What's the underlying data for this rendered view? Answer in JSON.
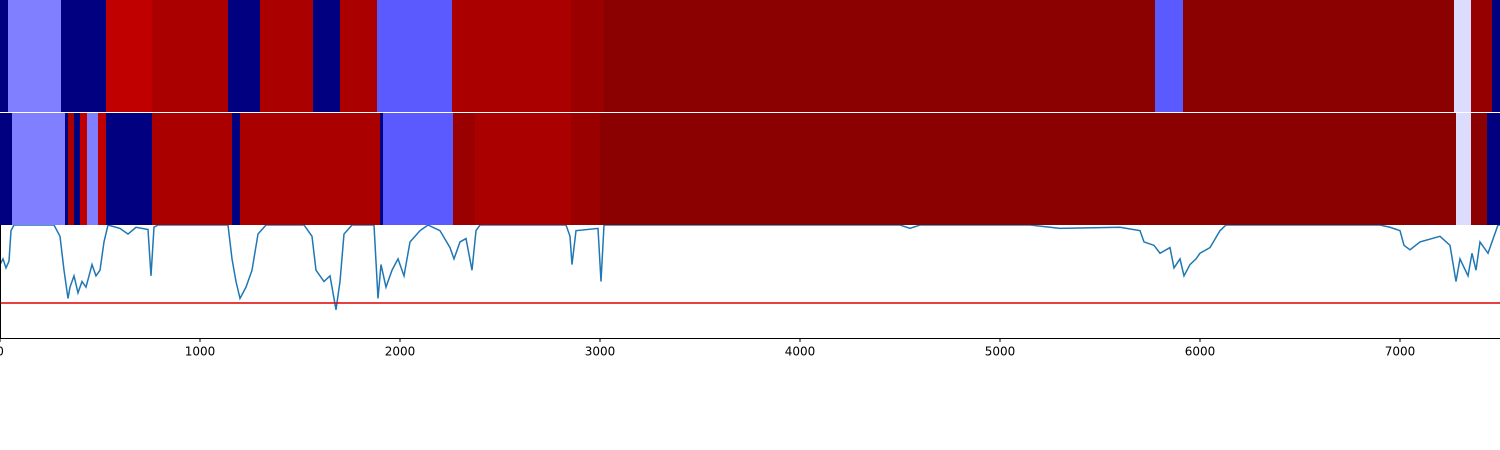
{
  "chart_data": [
    {
      "type": "segments",
      "xlim": [
        0,
        7500
      ],
      "bins": [
        0,
        40,
        305,
        530,
        760,
        1140,
        1300,
        1565,
        1700,
        1885,
        2260,
        2855,
        3020,
        5775,
        5915,
        7270,
        7355,
        7460,
        7500
      ],
      "colors": [
        "#000080",
        "#7f7fff",
        "#000080",
        "#c00000",
        "#aa0000",
        "#000080",
        "#aa0000",
        "#000080",
        "#aa0000",
        "#5a5aff",
        "#aa0000",
        "#9a0000",
        "#8b0000",
        "#5a5aff",
        "#8b0000",
        "#dcdcff",
        "#960000",
        "#000080"
      ]
    },
    {
      "type": "segments",
      "xlim": [
        0,
        7500
      ],
      "bins": [
        0,
        60,
        325,
        340,
        370,
        400,
        435,
        490,
        530,
        760,
        1160,
        1200,
        1900,
        1915,
        2265,
        2375,
        2855,
        3000,
        7280,
        7355,
        7435,
        7500
      ],
      "colors": [
        "#000080",
        "#7f7fff",
        "#000080",
        "#aa0000",
        "#000080",
        "#c00000",
        "#7f7fff",
        "#c00000",
        "#000080",
        "#aa0000",
        "#000080",
        "#aa0000",
        "#000080",
        "#5a5aff",
        "#9a0000",
        "#aa0000",
        "#9a0000",
        "#8b0000",
        "#dcdcff",
        "#8b0000",
        "#000080"
      ]
    },
    {
      "type": "line",
      "xlim": [
        0,
        7500
      ],
      "ylim": [
        0,
        1
      ],
      "xticks": [
        0,
        1000,
        2000,
        3000,
        4000,
        5000,
        6000,
        7000
      ],
      "color": "#1f77b4",
      "threshold": 0.31,
      "threshold_color": "#e00000",
      "x": [
        0,
        15,
        30,
        45,
        55,
        70,
        270,
        300,
        320,
        340,
        350,
        370,
        390,
        410,
        430,
        460,
        480,
        500,
        520,
        540,
        600,
        640,
        680,
        740,
        755,
        770,
        790,
        1140,
        1160,
        1180,
        1200,
        1230,
        1260,
        1290,
        1330,
        1520,
        1560,
        1580,
        1620,
        1650,
        1680,
        1700,
        1720,
        1760,
        1870,
        1890,
        1905,
        1930,
        1960,
        1990,
        2020,
        2050,
        2100,
        2140,
        2200,
        2250,
        2270,
        2300,
        2330,
        2360,
        2380,
        2400,
        2830,
        2850,
        2860,
        2880,
        2990,
        3005,
        3020,
        4500,
        4550,
        4600,
        5150,
        5300,
        5600,
        5700,
        5720,
        5770,
        5800,
        5850,
        5870,
        5900,
        5920,
        5950,
        5980,
        6000,
        6050,
        6100,
        6130,
        6900,
        6950,
        7000,
        7020,
        7050,
        7100,
        7200,
        7250,
        7280,
        7300,
        7340,
        7360,
        7380,
        7400,
        7440,
        7470,
        7490,
        7500
      ],
      "values": [
        0.65,
        0.7,
        0.62,
        0.68,
        0.95,
        1,
        1,
        0.9,
        0.6,
        0.35,
        0.45,
        0.55,
        0.4,
        0.5,
        0.45,
        0.65,
        0.55,
        0.6,
        0.85,
        1,
        0.97,
        0.92,
        0.98,
        0.96,
        0.55,
        0.98,
        1,
        1,
        0.7,
        0.5,
        0.35,
        0.45,
        0.6,
        0.92,
        1,
        1,
        0.9,
        0.6,
        0.5,
        0.55,
        0.25,
        0.5,
        0.92,
        1,
        1,
        0.35,
        0.65,
        0.45,
        0.6,
        0.7,
        0.55,
        0.85,
        0.95,
        1,
        0.95,
        0.8,
        0.7,
        0.85,
        0.88,
        0.6,
        0.95,
        1,
        1,
        0.9,
        0.65,
        0.95,
        0.97,
        0.5,
        1,
        1,
        0.97,
        1,
        1,
        0.97,
        0.98,
        0.95,
        0.85,
        0.82,
        0.75,
        0.8,
        0.62,
        0.7,
        0.55,
        0.65,
        0.7,
        0.75,
        0.8,
        0.95,
        1,
        1,
        0.98,
        0.95,
        0.82,
        0.78,
        0.85,
        0.9,
        0.82,
        0.5,
        0.7,
        0.55,
        0.75,
        0.6,
        0.85,
        0.75,
        0.9,
        1,
        1
      ]
    }
  ]
}
